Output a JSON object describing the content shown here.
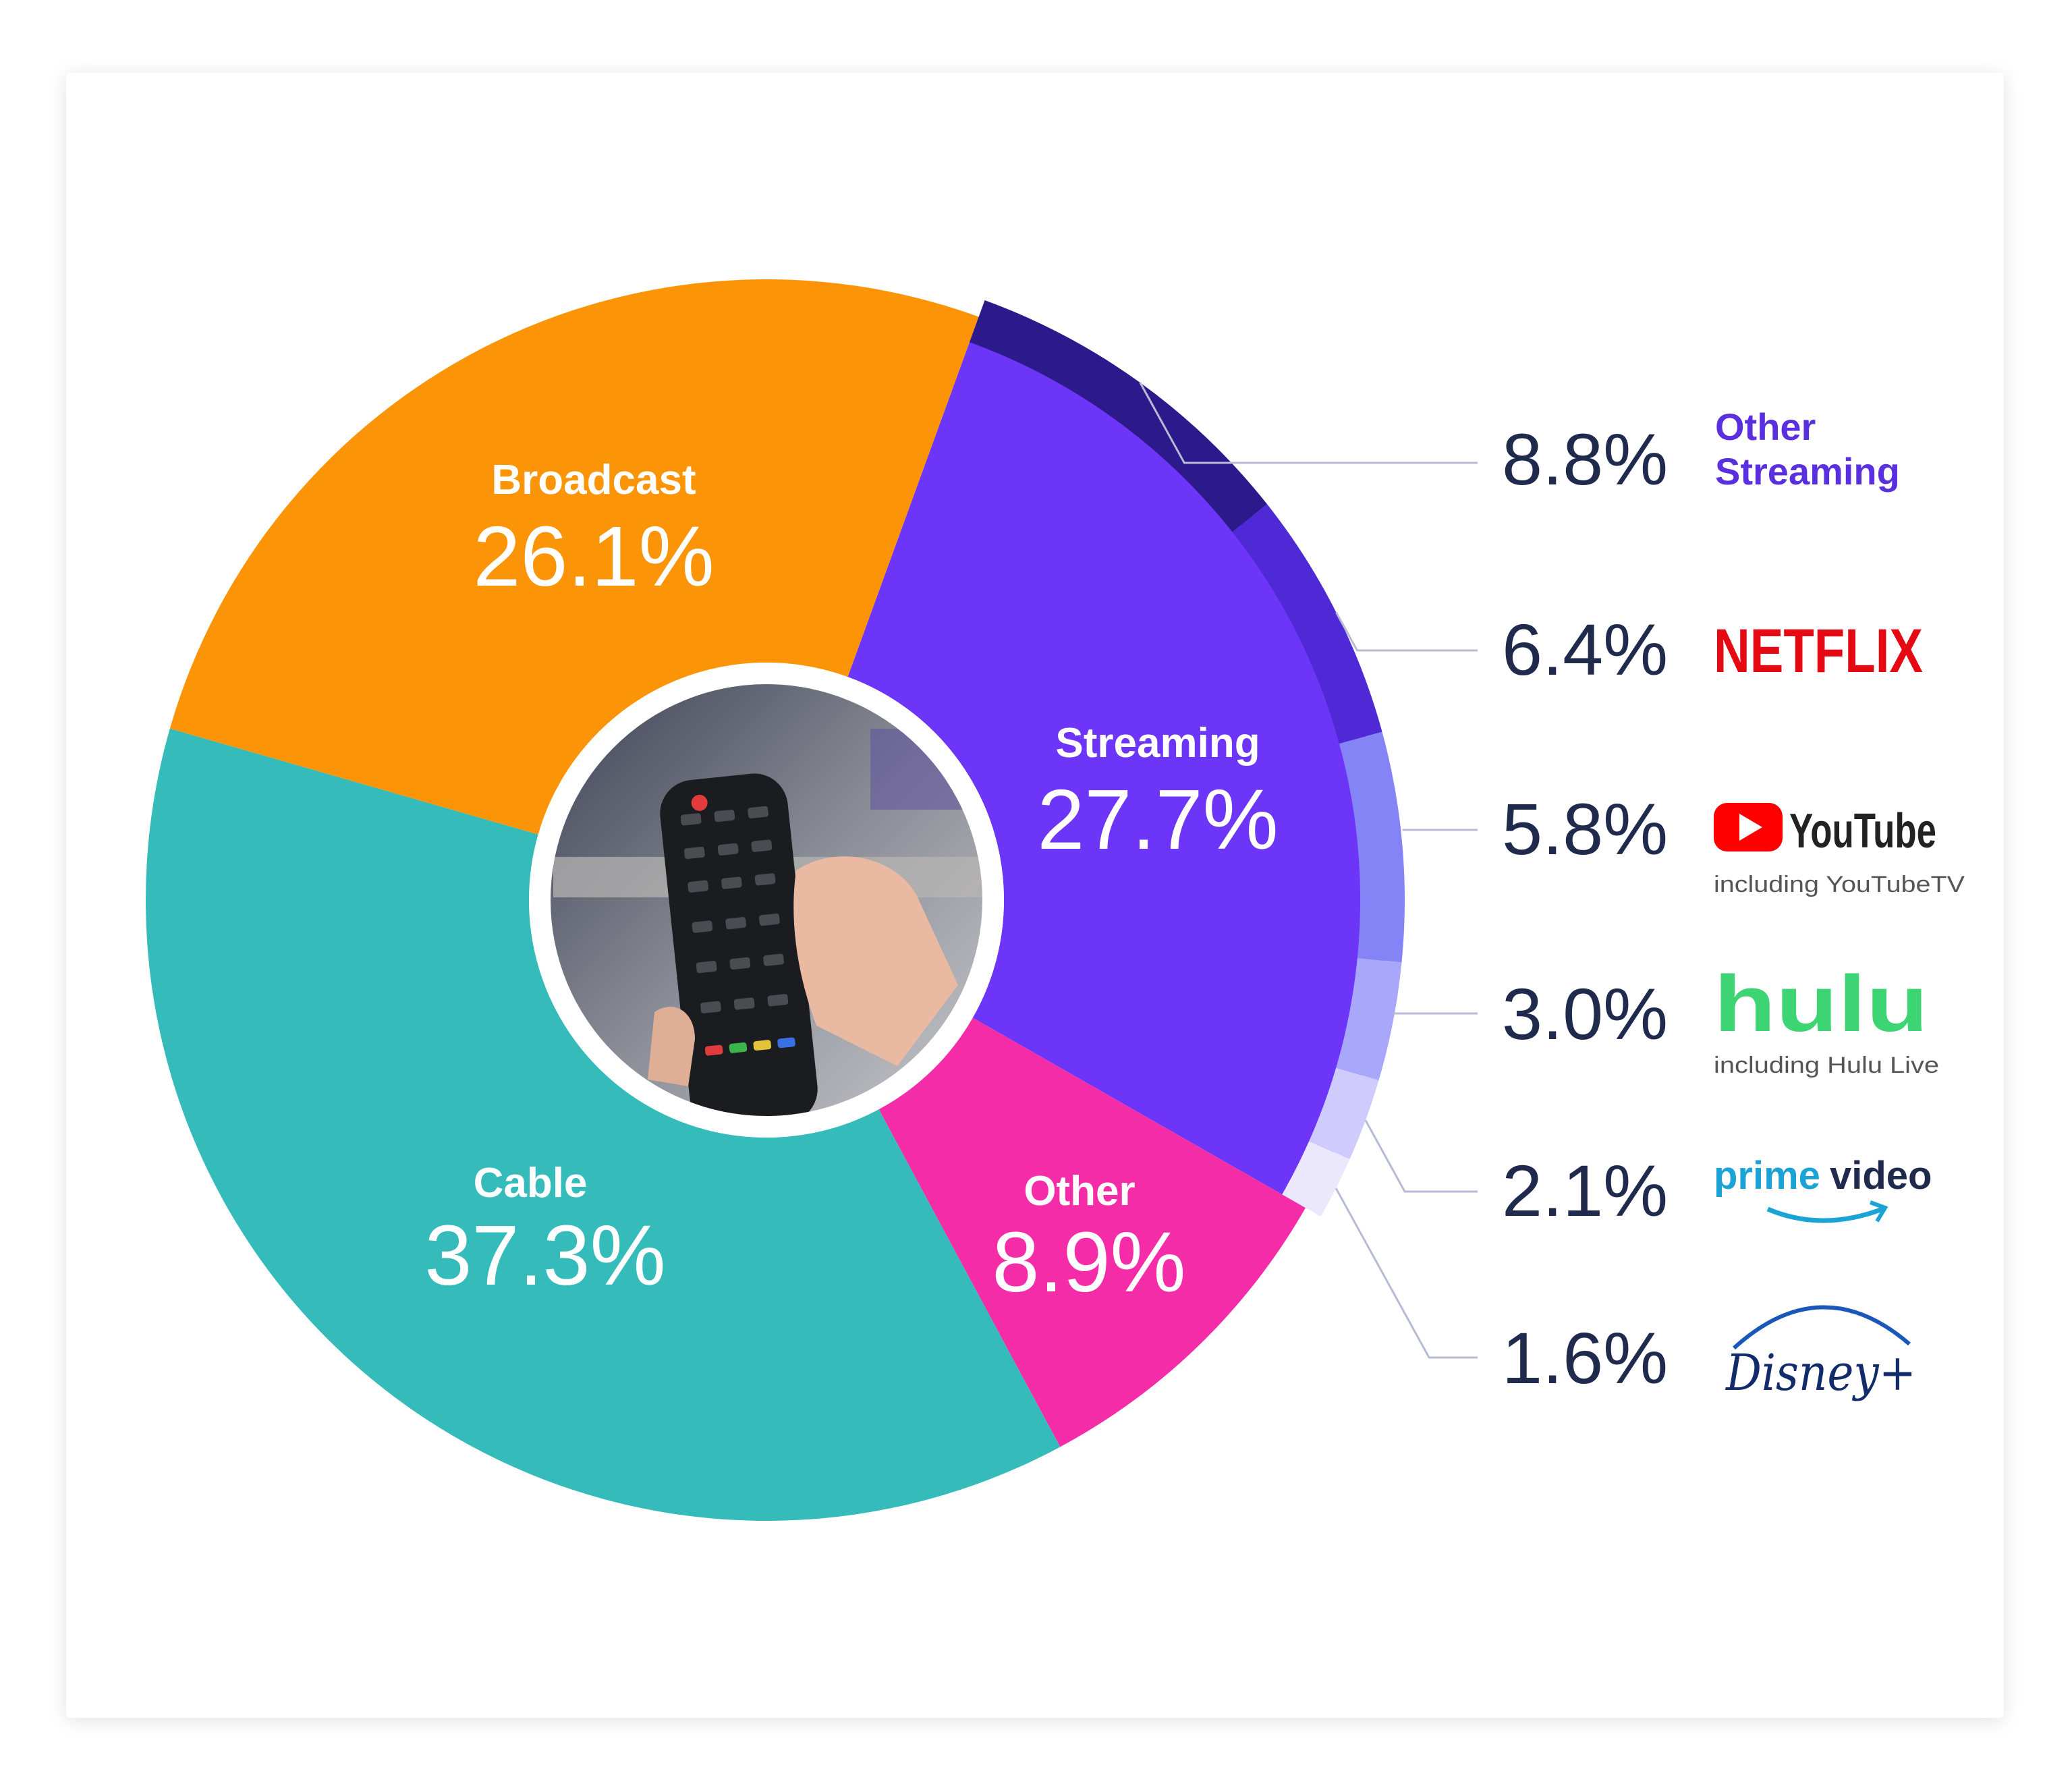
{
  "chart_data": {
    "type": "pie",
    "title": "",
    "categories": [
      "Streaming",
      "Other",
      "Cable",
      "Broadcast"
    ],
    "values": [
      27.7,
      8.9,
      37.3,
      26.1
    ],
    "labels": [
      "27.7%",
      "8.9%",
      "37.3%",
      "26.1%"
    ],
    "colors": [
      "#6c35f8",
      "#f52ca8",
      "#34bbba",
      "#fb9507"
    ],
    "streaming_breakdown": {
      "categories": [
        "Other Streaming",
        "Netflix",
        "YouTube",
        "Hulu",
        "Prime Video",
        "Disney+"
      ],
      "values": [
        8.8,
        6.4,
        5.8,
        3.0,
        2.1,
        1.6
      ],
      "labels": [
        "8.8%",
        "6.4%",
        "5.8%",
        "3.0%",
        "2.1%",
        "1.6%"
      ],
      "colors": [
        "#2c1a8c",
        "#4f29d6",
        "#8584f7",
        "#a8a7f9",
        "#cfcbfc",
        "#ebe8fe"
      ]
    },
    "legend_placement": "right",
    "center_image": "tv-remote-photo"
  },
  "legend": {
    "other_streaming_line1": "Other",
    "other_streaming_line2": "Streaming",
    "netflix": "NETFLIX",
    "youtube": "YouTube",
    "youtube_sub": "including YouTubeTV",
    "hulu": "hulu",
    "hulu_sub": "including Hulu Live",
    "prime_a": "prime",
    "prime_b": "video",
    "disney": "Disney+"
  },
  "brand_colors": {
    "other_streaming": "#5a2fe0",
    "netflix": "#e50914",
    "youtube_red": "#ff0000",
    "youtube_text": "#222222",
    "hulu": "#3dd474",
    "prime": "#1aa3d4",
    "disney": "#112b6b"
  }
}
